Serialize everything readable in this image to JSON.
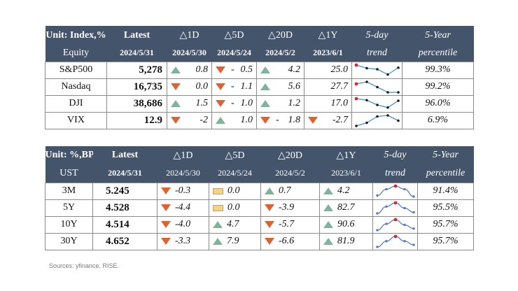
{
  "equity": {
    "header": {
      "label1": "Unit: Index,%",
      "label2": "Equity",
      "latest": "Latest",
      "latest_date": "2024/5/31",
      "cols": [
        {
          "title": "△1D",
          "date": "2024/5/30"
        },
        {
          "title": "△5D",
          "date": "2024/5/24"
        },
        {
          "title": "△20D",
          "date": "2024/5/2"
        },
        {
          "title": "△1Y",
          "date": "2023/6/1"
        }
      ],
      "trend1": "5-day",
      "trend2": "trend",
      "pct1": "5-Year",
      "pct2": "percentile"
    },
    "rows": [
      {
        "name": "S&P500",
        "latest": "5,278",
        "d1": {
          "dir": "up",
          "val": "0.8"
        },
        "d5": {
          "dir": "down",
          "val": "0.5",
          "dash": "-"
        },
        "d20": {
          "dir": "up",
          "val": "4.2"
        },
        "y1": {
          "val": "25.0"
        },
        "trend": [
          1.0,
          0.7,
          0.6,
          0.1,
          0.75
        ],
        "pct": "99.3%"
      },
      {
        "name": "Nasdaq",
        "latest": "16,735",
        "d1": {
          "dir": "down",
          "val": "0.0"
        },
        "d5": {
          "dir": "down",
          "val": "1.1",
          "dash": "-"
        },
        "d20": {
          "dir": "up",
          "val": "5.6"
        },
        "y1": {
          "val": "27.7"
        },
        "trend": [
          0.8,
          1.0,
          0.5,
          0.0,
          0.0
        ],
        "pct": "99.2%"
      },
      {
        "name": "DJI",
        "latest": "38,686",
        "d1": {
          "dir": "up",
          "val": "1.5"
        },
        "d5": {
          "dir": "down",
          "val": "1.0",
          "dash": "-"
        },
        "d20": {
          "dir": "up",
          "val": "1.2"
        },
        "y1": {
          "val": "17.0"
        },
        "trend": [
          1.0,
          0.85,
          0.4,
          0.15,
          0.8
        ],
        "pct": "96.0%"
      },
      {
        "name": "VIX",
        "latest": "12.9",
        "d1": {
          "dir": "down",
          "val": "-2"
        },
        "d5": {
          "dir": "up",
          "val": "1.0"
        },
        "d20": {
          "dir": "down",
          "val": "1.8",
          "dash": "-"
        },
        "y1": {
          "dir": "down",
          "val": "-2.7"
        },
        "trend": [
          0.0,
          0.3,
          0.9,
          1.0,
          0.5
        ],
        "pct": "6.9%"
      }
    ]
  },
  "ust": {
    "header": {
      "label1": "Unit: %,BP",
      "label2": "UST",
      "latest": "Latest",
      "latest_date": "2024/5/31",
      "cols": [
        {
          "title": "△1D",
          "date": "2024/5/30"
        },
        {
          "title": "△5D",
          "date": "2024/5/24"
        },
        {
          "title": "△20D",
          "date": "2024/5/2"
        },
        {
          "title": "△1Y",
          "date": "2023/6/1"
        }
      ],
      "trend1": "5-day",
      "trend2": "trend",
      "pct1": "5-Year",
      "pct2": "percentile"
    },
    "rows": [
      {
        "name": "3M",
        "latest": "5.245",
        "d1": {
          "dir": "down",
          "val": "-0.3"
        },
        "d5": {
          "dir": "flat",
          "val": "0.0"
        },
        "d20": {
          "dir": "up",
          "val": "0.7"
        },
        "y1": {
          "dir": "up",
          "val": "4.2"
        },
        "trend": [
          0.1,
          0.7,
          1.0,
          0.7,
          0.0
        ],
        "pct": "91.4%"
      },
      {
        "name": "5Y",
        "latest": "4.528",
        "d1": {
          "dir": "down",
          "val": "-4.4"
        },
        "d5": {
          "dir": "flat",
          "val": "0.0"
        },
        "d20": {
          "dir": "down",
          "val": "-3.9"
        },
        "y1": {
          "dir": "up",
          "val": "82.7"
        },
        "trend": [
          0.0,
          0.65,
          1.0,
          0.5,
          0.1
        ],
        "pct": "95.5%"
      },
      {
        "name": "10Y",
        "latest": "4.514",
        "d1": {
          "dir": "down",
          "val": "-4.0"
        },
        "d5": {
          "dir": "up",
          "val": "4.7"
        },
        "d20": {
          "dir": "down",
          "val": "-5.7"
        },
        "y1": {
          "dir": "up",
          "val": "90.6"
        },
        "trend": [
          0.0,
          0.6,
          1.0,
          0.5,
          0.15
        ],
        "pct": "95.7%"
      },
      {
        "name": "30Y",
        "latest": "4.652",
        "d1": {
          "dir": "down",
          "val": "-3.3"
        },
        "d5": {
          "dir": "up",
          "val": "7.9"
        },
        "d20": {
          "dir": "down",
          "val": "-6.6"
        },
        "y1": {
          "dir": "up",
          "val": "81.9"
        },
        "trend": [
          0.0,
          0.55,
          1.0,
          0.55,
          0.2
        ],
        "pct": "95.7%"
      }
    ]
  },
  "source": "Sources: yfinance, RISE.",
  "colors": {
    "header_bg": "#44546a",
    "up": "#7fb49a",
    "down": "#e0632f",
    "flat": "#f3d28a",
    "equity_spark": "#4a90d9",
    "ust_spark": "#5a7fc4",
    "spark_marker": "#d42a2a"
  }
}
